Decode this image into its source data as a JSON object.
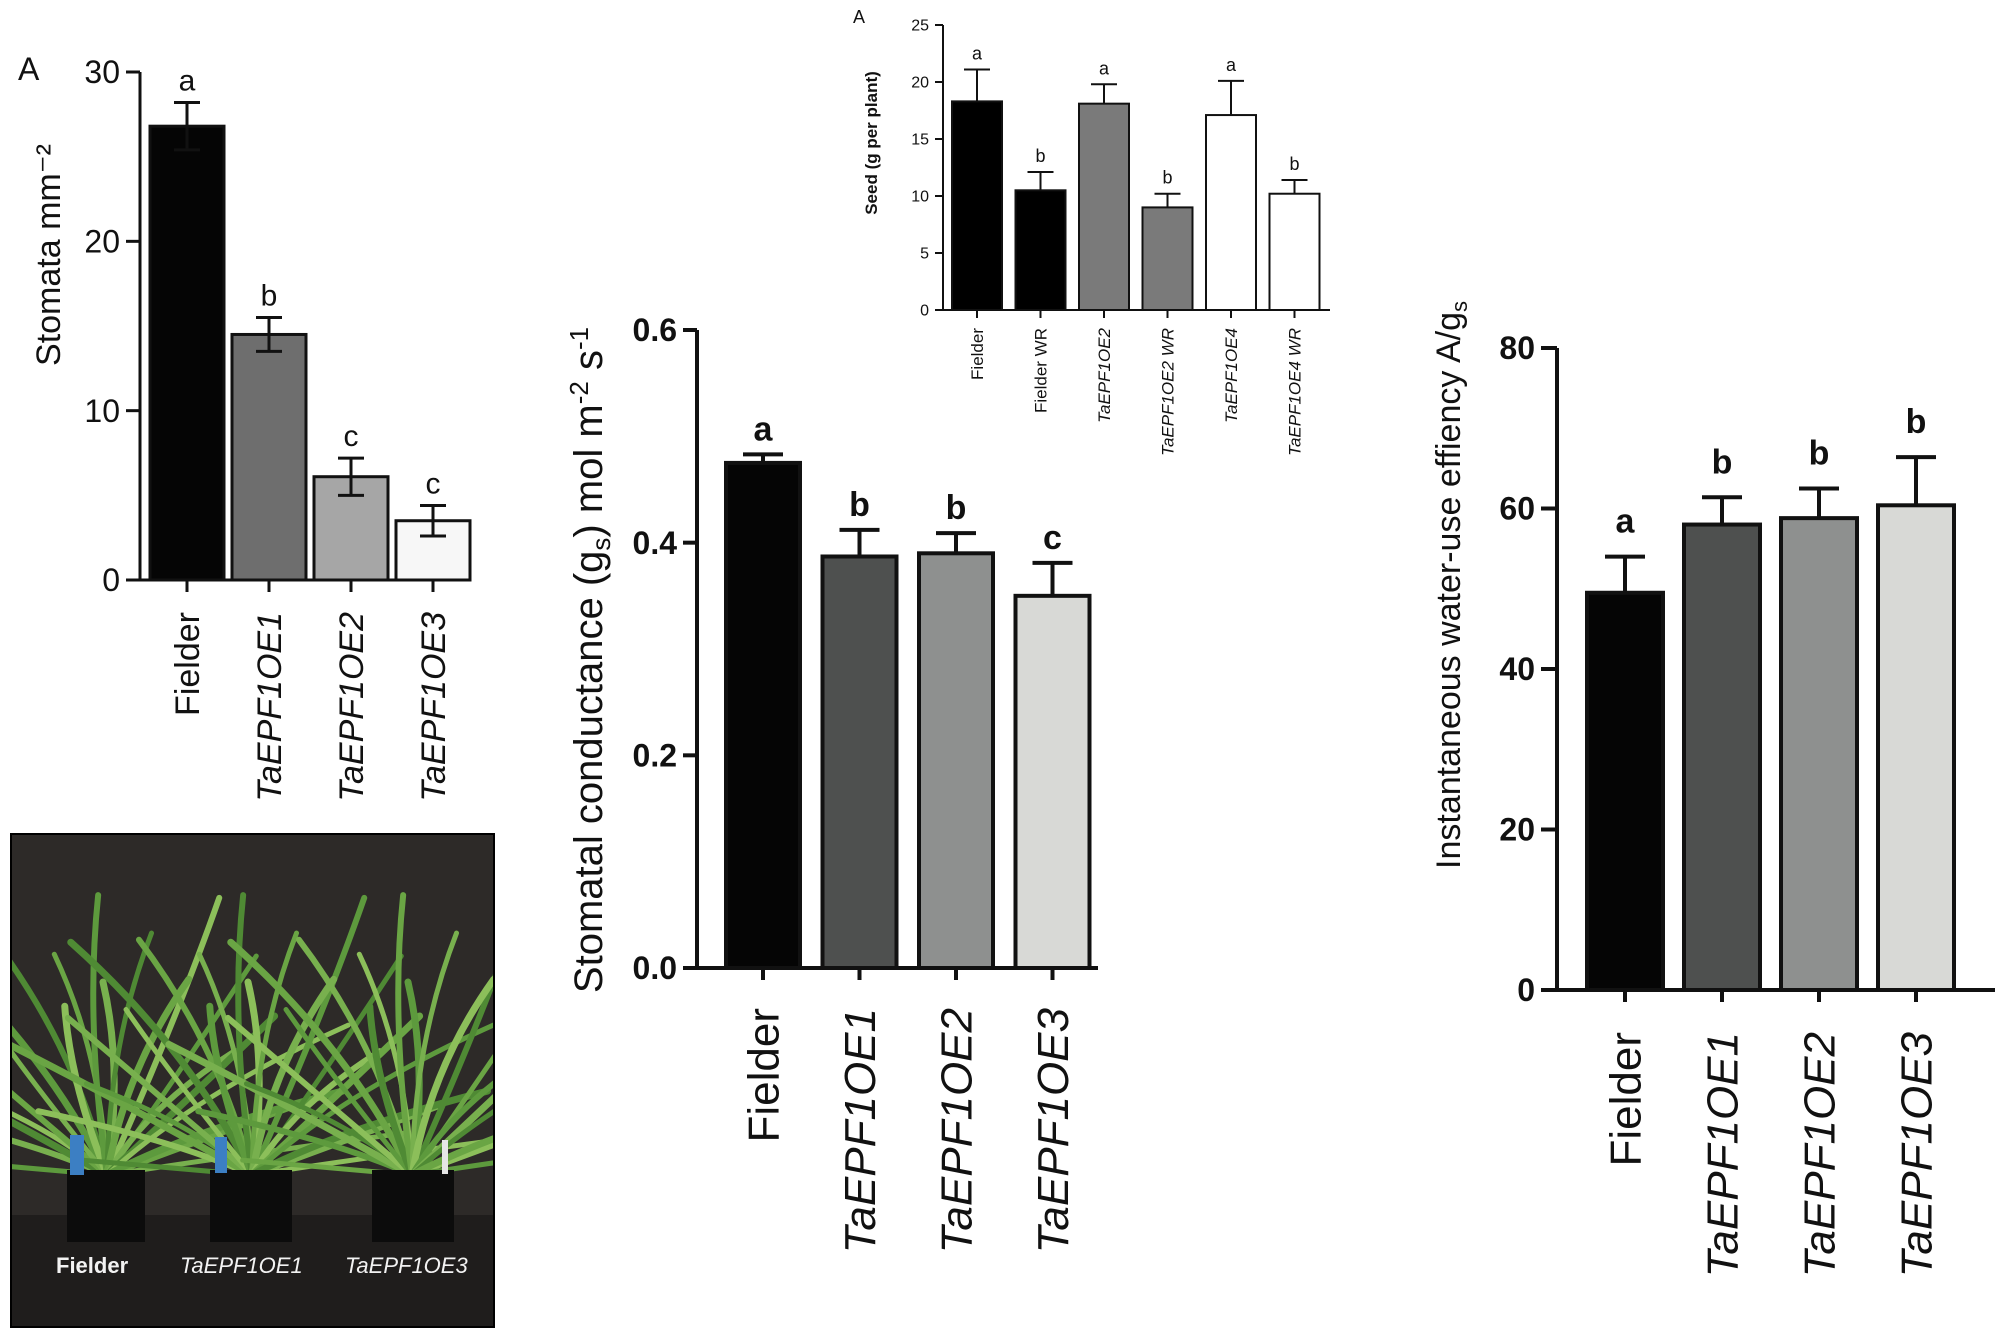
{
  "panels": {
    "stomata": {
      "panel_letter": "A",
      "chart_data": {
        "type": "bar",
        "categories": [
          "Fielder",
          "TaEPF1OE1",
          "TaEPF1OE2",
          "TaEPF1OE3"
        ],
        "values": [
          26.8,
          14.5,
          6.1,
          3.5
        ],
        "errors": [
          1.4,
          1.0,
          1.1,
          0.9
        ],
        "significance": [
          "a",
          "b",
          "c",
          "c"
        ],
        "ylabel": "Stomata mm⁻²",
        "ylim": [
          0,
          30
        ],
        "yticks": [
          0,
          10,
          20,
          30
        ],
        "bar_colors": [
          "#050505",
          "#6e6e6e",
          "#a6a6a6",
          "#f7f7f7"
        ],
        "italic_categories": [
          false,
          true,
          true,
          true
        ]
      }
    },
    "seed": {
      "panel_letter": "A",
      "chart_data": {
        "type": "bar",
        "categories": [
          "Fielder",
          "Fielder WR",
          "TaEPF1OE2",
          "TaEPF1OE2 WR",
          "TaEPF1OE4",
          "TaEPF1OE4 WR"
        ],
        "values": [
          18.3,
          10.5,
          18.1,
          9.0,
          17.1,
          10.2
        ],
        "errors": [
          2.8,
          1.6,
          1.7,
          1.2,
          3.0,
          1.2
        ],
        "significance": [
          "a",
          "b",
          "a",
          "b",
          "a",
          "b"
        ],
        "ylabel": "Seed (g per plant)",
        "ylim": [
          0,
          25
        ],
        "yticks": [
          0,
          5,
          10,
          15,
          20,
          25
        ],
        "bar_colors": [
          "#000000",
          "#000000",
          "#7a7a7a",
          "#7a7a7a",
          "#ffffff",
          "#ffffff"
        ],
        "italic_categories": [
          false,
          false,
          true,
          true,
          true,
          true
        ]
      }
    },
    "conductance": {
      "chart_data": {
        "type": "bar",
        "categories": [
          "Fielder",
          "TaEPF1OE1",
          "TaEPF1OE2",
          "TaEPF1OE3"
        ],
        "values": [
          0.475,
          0.387,
          0.39,
          0.35
        ],
        "errors": [
          0.008,
          0.025,
          0.019,
          0.031
        ],
        "significance": [
          "a",
          "b",
          "b",
          "c"
        ],
        "ylabel": "Stomatal conductance (gs) mol m⁻² s⁻¹",
        "ylim": [
          0,
          0.6
        ],
        "yticks": [
          0.0,
          0.2,
          0.4,
          0.6
        ],
        "bar_colors": [
          "#050505",
          "#4e504f",
          "#8e908f",
          "#d8d9d6"
        ],
        "italic_categories": [
          false,
          true,
          true,
          true
        ]
      }
    },
    "wue": {
      "chart_data": {
        "type": "bar",
        "categories": [
          "Fielder",
          "TaEPF1OE1",
          "TaEPF1OE2",
          "TaEPF1OE3"
        ],
        "values": [
          49.5,
          58.0,
          58.8,
          60.4
        ],
        "errors": [
          4.5,
          3.4,
          3.7,
          6.0
        ],
        "significance": [
          "a",
          "b",
          "b",
          "b"
        ],
        "ylabel": "Instantaneous water-use effiency A/gs",
        "ylim": [
          0,
          80
        ],
        "yticks": [
          0,
          20,
          40,
          60,
          80
        ],
        "bar_colors": [
          "#050505",
          "#4e504f",
          "#8e908f",
          "#d8d9d6"
        ],
        "italic_categories": [
          false,
          true,
          true,
          true
        ]
      }
    },
    "photo": {
      "labels": [
        "Fielder",
        "TaEPF1OE1",
        "TaEPF1OE3"
      ]
    }
  }
}
